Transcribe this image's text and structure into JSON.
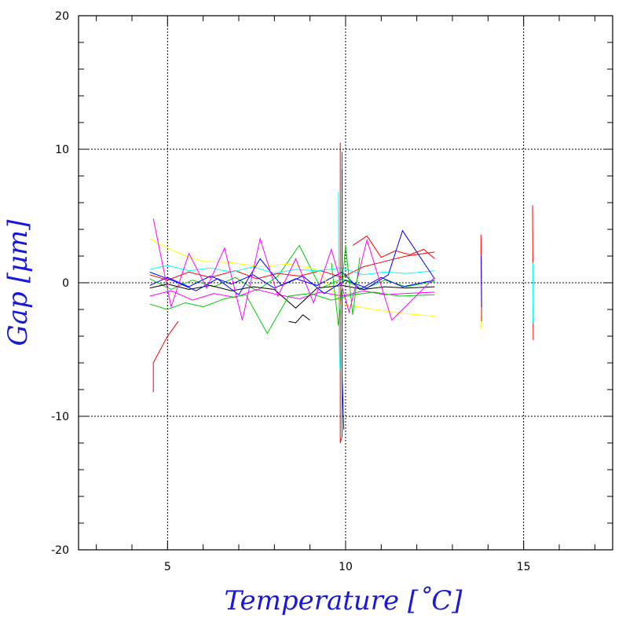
{
  "chart_data": {
    "type": "line",
    "xlabel": "Temperature [˚C]",
    "ylabel": "Gap [μm]",
    "xlim": [
      2.5,
      17.5
    ],
    "ylim": [
      -20,
      20
    ],
    "xticks": [
      5,
      10,
      15
    ],
    "yticks": [
      -20,
      -10,
      0,
      10,
      20
    ],
    "x_tick_labels": [
      "5",
      "10",
      "15"
    ],
    "y_tick_labels": [
      "-20",
      "-10",
      "0",
      "10",
      "20"
    ],
    "grid": true,
    "legend": "none",
    "series_colors": [
      "#ff0000",
      "#00cc00",
      "#0000ff",
      "#ffff00",
      "#ff00ff",
      "#00ffff",
      "#000000"
    ],
    "description_of_traces": "many overlapping traces",
    "series": [
      {
        "color": "#ff0000",
        "x": [
          4.5,
          5.0,
          5.6,
          6.2,
          6.9,
          7.5,
          8.1,
          8.7,
          9.3,
          9.9,
          10.5,
          11.1,
          11.7,
          12.5
        ],
        "y": [
          0.6,
          0.2,
          0.8,
          0.4,
          0.9,
          0.3,
          0.7,
          0.5,
          0.9,
          0.4,
          1.2,
          1.6,
          2.0,
          2.3
        ]
      },
      {
        "color": "#00cc00",
        "x": [
          4.5,
          5.1,
          5.7,
          6.3,
          6.9,
          7.5,
          8.1,
          8.7,
          9.3,
          9.9,
          10.5,
          11.1,
          11.7,
          12.5
        ],
        "y": [
          0.3,
          -0.5,
          0.2,
          -0.3,
          0.4,
          -0.6,
          0.5,
          2.8,
          -0.4,
          0.3,
          -0.5,
          0.2,
          -0.3,
          0.1
        ]
      },
      {
        "color": "#0000ff",
        "x": [
          4.5,
          5.0,
          5.6,
          6.2,
          6.8,
          7.4,
          8.0,
          8.6,
          9.2,
          9.9,
          10.4,
          11.0,
          11.6,
          12.5
        ],
        "y": [
          -0.2,
          0.4,
          -0.3,
          0.5,
          -0.1,
          0.6,
          -0.4,
          0.3,
          -0.2,
          0.8,
          -0.5,
          0.4,
          -0.3,
          0.2
        ]
      },
      {
        "color": "#ffff00",
        "x": [
          4.5,
          5.0,
          5.5,
          6.0,
          6.8,
          7.6,
          8.4,
          9.2,
          9.9,
          10.8,
          11.6,
          12.5
        ],
        "y": [
          3.3,
          2.6,
          2.0,
          1.6,
          1.5,
          1.2,
          1.4,
          1.0,
          -1.6,
          -2.0,
          -2.3,
          -2.5
        ]
      },
      {
        "color": "#ff00ff",
        "x": [
          4.5,
          5.1,
          5.7,
          6.3,
          6.9,
          7.5,
          8.1,
          8.7,
          9.3,
          9.9,
          10.5,
          11.1,
          11.7,
          12.5
        ],
        "y": [
          -1.0,
          -0.6,
          -1.3,
          -0.8,
          -1.1,
          -0.5,
          -0.9,
          -1.2,
          -0.7,
          -1.0,
          -0.6,
          -0.9,
          -0.8,
          -0.7
        ]
      },
      {
        "color": "#00ffff",
        "x": [
          4.5,
          5.0,
          5.6,
          6.2,
          6.8,
          7.4,
          8.0,
          8.6,
          9.2,
          9.9,
          10.5,
          11.1,
          11.7,
          12.5
        ],
        "y": [
          1.0,
          1.3,
          0.9,
          1.1,
          0.8,
          1.2,
          0.7,
          1.0,
          0.9,
          1.1,
          0.6,
          0.8,
          0.7,
          0.9
        ]
      },
      {
        "color": "#000000",
        "x": [
          4.5,
          5.0,
          5.6,
          6.2,
          6.8,
          7.4,
          8.0,
          8.6,
          9.2,
          9.9,
          10.5,
          11.1,
          11.7,
          12.5
        ],
        "y": [
          -0.4,
          -0.1,
          -0.5,
          -0.2,
          -0.6,
          -0.3,
          -0.5,
          -1.9,
          -0.4,
          -0.2,
          -0.5,
          -0.3,
          -0.4,
          -0.3
        ]
      },
      {
        "color": "#ff0000",
        "x": [
          4.6,
          4.6,
          4.7,
          5.0,
          5.3
        ],
        "y": [
          -8.2,
          -6.0,
          -5.5,
          -4.0,
          -2.9
        ]
      },
      {
        "color": "#ff0000",
        "x": [
          9.85,
          9.85,
          9.9,
          9.9
        ],
        "y": [
          10.5,
          -12.0,
          -11.5,
          9.8
        ]
      },
      {
        "color": "#0000ff",
        "x": [
          9.9,
          9.9,
          9.95
        ],
        "y": [
          8.5,
          -7.0,
          -11.0
        ]
      },
      {
        "color": "#00ffff",
        "x": [
          9.8,
          9.82,
          9.84
        ],
        "y": [
          6.8,
          -4.0,
          -6.5
        ]
      },
      {
        "color": "#ff0000",
        "x": [
          13.8,
          13.82
        ],
        "y": [
          3.6,
          -2.9
        ]
      },
      {
        "color": "#0000ff",
        "x": [
          13.81,
          13.82
        ],
        "y": [
          2.0,
          -1.8
        ]
      },
      {
        "color": "#ffff00",
        "x": [
          13.79,
          13.8
        ],
        "y": [
          -2.5,
          -3.5
        ]
      },
      {
        "color": "#ff0000",
        "x": [
          15.25,
          15.27
        ],
        "y": [
          5.8,
          -4.3
        ]
      },
      {
        "color": "#00ffff",
        "x": [
          15.26,
          15.26
        ],
        "y": [
          1.5,
          -3.0
        ]
      },
      {
        "color": "#00cc00",
        "x": [
          4.5,
          5.0,
          5.5,
          6.0,
          6.6,
          7.2,
          7.8,
          8.4,
          9.0,
          9.6,
          10.2,
          10.8,
          11.5,
          12.5
        ],
        "y": [
          -1.6,
          -2.0,
          -1.5,
          -1.8,
          -1.2,
          -0.9,
          -3.8,
          -1.0,
          -0.8,
          -1.3,
          -0.9,
          -0.7,
          -1.0,
          -0.9
        ]
      },
      {
        "color": "#0000ff",
        "x": [
          4.5,
          5.2,
          5.8,
          6.4,
          7.0,
          7.6,
          8.2,
          8.8,
          9.4,
          10.0,
          10.6,
          11.2,
          11.6,
          12.5
        ],
        "y": [
          0.8,
          0.1,
          -0.6,
          0.3,
          -0.9,
          1.8,
          -0.2,
          0.5,
          -0.8,
          0.2,
          -0.4,
          0.6,
          3.9,
          0.3
        ]
      },
      {
        "color": "#ff00ff",
        "x": [
          4.6,
          5.1,
          5.6,
          6.1,
          6.6,
          7.1,
          7.6,
          8.1,
          8.6,
          9.1,
          9.6,
          10.1,
          10.6,
          11.3,
          12.5
        ],
        "y": [
          4.8,
          -1.8,
          2.2,
          -0.4,
          2.6,
          -2.8,
          3.3,
          -1.0,
          1.8,
          -1.5,
          2.5,
          -2.2,
          3.2,
          -2.8,
          0.4
        ]
      },
      {
        "color": "#00cc00",
        "x": [
          9.6,
          9.8,
          10.0,
          10.2,
          10.4
        ],
        "y": [
          1.5,
          -3.2,
          2.8,
          -2.4,
          1.9
        ]
      },
      {
        "color": "#000000",
        "x": [
          8.4,
          8.6,
          8.8,
          9.0
        ],
        "y": [
          -2.9,
          -3.0,
          -2.4,
          -2.8
        ]
      },
      {
        "color": "#ff0000",
        "x": [
          10.2,
          10.6,
          11.0,
          11.4,
          11.8,
          12.2,
          12.5
        ],
        "y": [
          2.8,
          3.5,
          1.9,
          2.4,
          2.1,
          2.5,
          1.8
        ]
      }
    ]
  }
}
